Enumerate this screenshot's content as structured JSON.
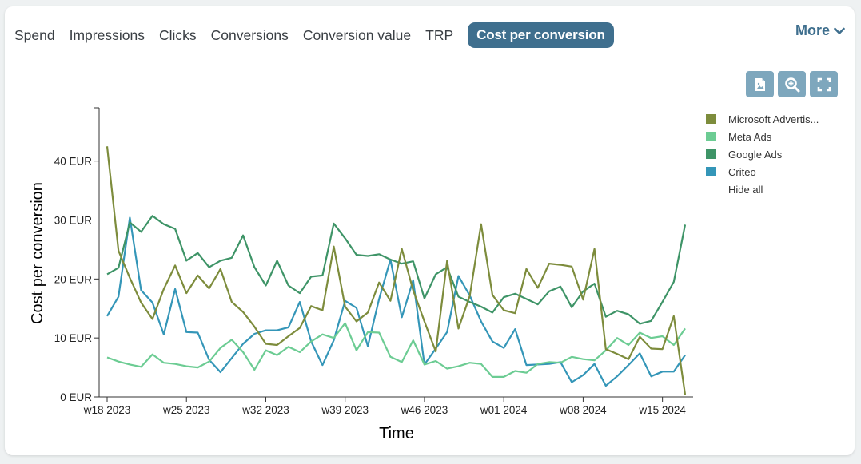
{
  "tabs": [
    {
      "label": "Spend",
      "active": false
    },
    {
      "label": "Impressions",
      "active": false
    },
    {
      "label": "Clicks",
      "active": false
    },
    {
      "label": "Conversions",
      "active": false
    },
    {
      "label": "Conversion value",
      "active": false
    },
    {
      "label": "TRP",
      "active": false
    },
    {
      "label": "Cost per conversion",
      "active": true
    }
  ],
  "more_label": "More",
  "toolbar": {
    "icons": [
      "export-image-icon",
      "zoom-icon",
      "fullscreen-icon"
    ]
  },
  "legend": {
    "items": [
      {
        "label": "Microsoft Advertis...",
        "color": "#7d8c3c"
      },
      {
        "label": "Meta Ads",
        "color": "#6ccc93"
      },
      {
        "label": "Google Ads",
        "color": "#3e9467"
      },
      {
        "label": "Criteo",
        "color": "#3496b8"
      }
    ],
    "hide_all_label": "Hide all"
  },
  "chart_data": {
    "type": "line",
    "xlabel": "Time",
    "ylabel": "Cost per conversion",
    "ylim": [
      0,
      45
    ],
    "y_ticks": [
      0,
      10,
      20,
      30,
      40
    ],
    "y_tick_labels": [
      "0 EUR",
      "10 EUR",
      "20 EUR",
      "30 EUR",
      "40 EUR"
    ],
    "x_tick_labels": [
      {
        "index": 0,
        "label": "w18 2023"
      },
      {
        "index": 7,
        "label": "w25 2023"
      },
      {
        "index": 14,
        "label": "w32 2023"
      },
      {
        "index": 21,
        "label": "w39 2023"
      },
      {
        "index": 28,
        "label": "w46 2023"
      },
      {
        "index": 35,
        "label": "w01 2024"
      },
      {
        "index": 42,
        "label": "w08 2024"
      },
      {
        "index": 49,
        "label": "w15 2024"
      }
    ],
    "grid": false,
    "legend_position": "right",
    "series": [
      {
        "name": "Microsoft Advertis...",
        "color": "#7d8c3c",
        "values": [
          42.5,
          24.8,
          20.2,
          16.0,
          13.2,
          18.3,
          22.3,
          17.6,
          20.6,
          18.4,
          21.7,
          16.1,
          14.4,
          11.9,
          9.0,
          8.8,
          10.3,
          11.7,
          15.4,
          14.7,
          25.5,
          15.3,
          12.8,
          14.3,
          19.4,
          16.3,
          25.1,
          18.1,
          12.8,
          7.7,
          23.1,
          11.6,
          17.1,
          29.3,
          17.3,
          14.7,
          14.2,
          21.7,
          18.5,
          22.6,
          22.4,
          22.1,
          16.5,
          25.1,
          8.1,
          7.3,
          6.4,
          10.2,
          8.2,
          8.1,
          13.7,
          0.4
        ]
      },
      {
        "name": "Meta Ads",
        "color": "#6ccc93",
        "values": [
          6.7,
          6.0,
          5.5,
          5.1,
          7.2,
          5.8,
          5.6,
          5.2,
          5.0,
          6.0,
          8.3,
          9.7,
          7.6,
          4.6,
          7.9,
          7.1,
          8.5,
          7.6,
          9.4,
          10.6,
          10.0,
          12.5,
          7.9,
          11.0,
          10.9,
          6.8,
          5.9,
          9.6,
          5.5,
          6.1,
          4.8,
          5.2,
          5.8,
          5.6,
          3.4,
          3.4,
          4.4,
          4.1,
          5.6,
          5.9,
          5.8,
          6.8,
          6.4,
          6.2,
          7.9,
          10.0,
          8.8,
          10.9,
          10.0,
          10.3,
          8.8,
          11.6
        ]
      },
      {
        "name": "Google Ads",
        "color": "#3e9467",
        "values": [
          20.8,
          21.9,
          29.6,
          28.0,
          30.7,
          29.3,
          28.5,
          23.1,
          24.4,
          22.0,
          23.1,
          23.6,
          27.4,
          22.0,
          18.9,
          23.1,
          18.9,
          17.6,
          20.4,
          20.6,
          29.4,
          26.9,
          24.1,
          23.9,
          24.2,
          23.3,
          22.6,
          23.0,
          16.7,
          20.8,
          22.0,
          17.0,
          16.1,
          15.3,
          14.3,
          16.9,
          17.5,
          16.6,
          15.7,
          17.9,
          18.7,
          15.2,
          17.9,
          19.2,
          13.6,
          14.6,
          14.0,
          12.4,
          12.9,
          16.1,
          19.5,
          29.2
        ]
      },
      {
        "name": "Criteo",
        "color": "#3496b8",
        "values": [
          13.7,
          17.0,
          30.4,
          18.1,
          16.0,
          10.6,
          18.3,
          11.0,
          10.9,
          6.3,
          4.2,
          6.6,
          9.0,
          10.7,
          11.3,
          11.3,
          11.8,
          16.1,
          9.4,
          5.4,
          9.6,
          16.3,
          15.1,
          8.6,
          16.6,
          23.3,
          13.5,
          19.8,
          5.5,
          8.2,
          11.0,
          20.5,
          17.2,
          12.8,
          9.4,
          8.3,
          11.5,
          5.4,
          5.5,
          5.6,
          5.9,
          2.5,
          3.7,
          5.6,
          1.9,
          3.5,
          5.4,
          7.4,
          3.5,
          4.3,
          4.3,
          7.1
        ]
      }
    ]
  }
}
